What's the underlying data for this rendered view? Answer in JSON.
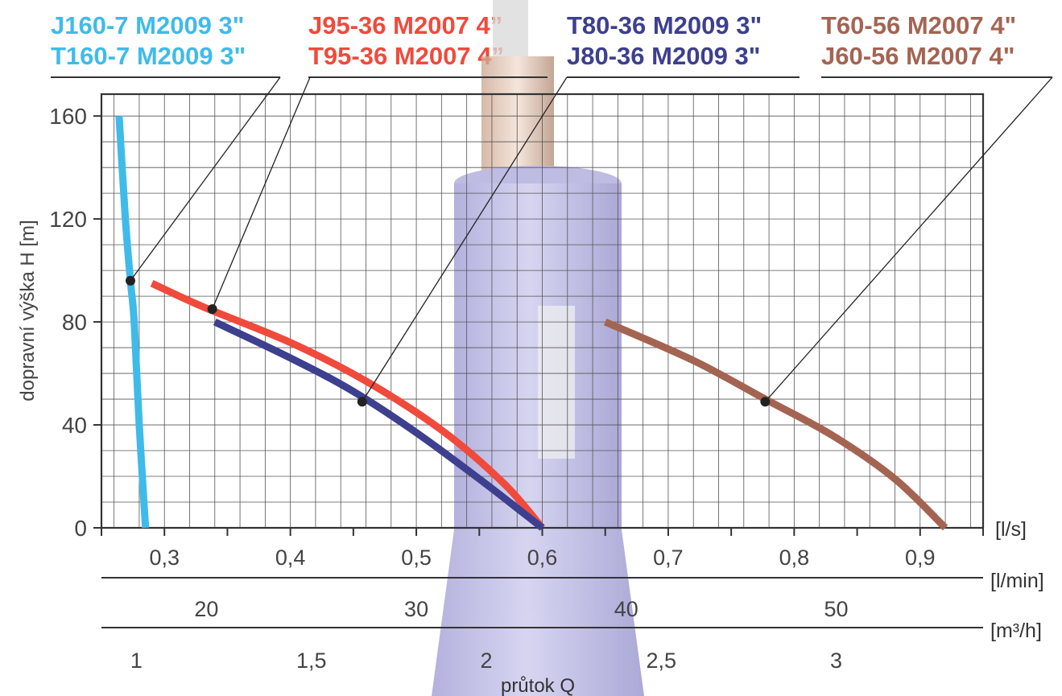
{
  "chart_data": {
    "type": "line",
    "ylabel": "dopravní výška H [m]",
    "xlabel": "průtok Q",
    "ylim": [
      0,
      160
    ],
    "yticks": [
      0,
      40,
      80,
      120,
      160
    ],
    "grid": true,
    "x_axis_primary": {
      "unit": "[l/s]",
      "range": [
        0.25,
        0.95
      ],
      "tick_labels": [
        "0,3",
        "0,4",
        "0,5",
        "0,6",
        "0,7",
        "0,8",
        "0,9"
      ],
      "ticks": [
        0.3,
        0.4,
        0.5,
        0.6,
        0.7,
        0.8,
        0.9
      ]
    },
    "x_axis_lmin": {
      "unit": "[l/min]",
      "tick_labels": [
        "20",
        "30",
        "40",
        "50"
      ],
      "ticks": [
        20,
        30,
        40,
        50
      ]
    },
    "x_axis_m3h": {
      "unit": "[m³/h]",
      "tick_labels": [
        "1",
        "1,5",
        "2",
        "2,5",
        "3"
      ],
      "ticks": [
        1,
        1.5,
        2,
        2.5,
        3
      ]
    },
    "series": [
      {
        "name": "J160-7 M2009 3\" / T160-7 M2009 3\"",
        "color": "#3fbbea",
        "points": [
          [
            0.264,
            160
          ],
          [
            0.269,
            120
          ],
          [
            0.273,
            96
          ],
          [
            0.276,
            80
          ],
          [
            0.28,
            40
          ],
          [
            0.285,
            0
          ]
        ],
        "marker": [
          0.273,
          96
        ]
      },
      {
        "name": "J95-36 M2007 4\" / T95-36 M2007 4\"",
        "color": "#f04a3c",
        "points": [
          [
            0.29,
            95
          ],
          [
            0.33,
            86
          ],
          [
            0.4,
            72
          ],
          [
            0.46,
            57
          ],
          [
            0.52,
            38
          ],
          [
            0.57,
            17
          ],
          [
            0.6,
            0
          ]
        ],
        "marker": [
          0.338,
          85
        ]
      },
      {
        "name": "T80-36 M2009 3\" / J80-36 M2009 3\"",
        "color": "#3d3f8f",
        "points": [
          [
            0.34,
            80
          ],
          [
            0.4,
            66
          ],
          [
            0.45,
            53
          ],
          [
            0.5,
            37
          ],
          [
            0.55,
            19
          ],
          [
            0.6,
            0
          ]
        ],
        "marker": [
          0.457,
          49
        ]
      },
      {
        "name": "T60-56 M2007 4\" / J60-56 M2007 4\"",
        "color": "#a46452",
        "points": [
          [
            0.65,
            80
          ],
          [
            0.72,
            65
          ],
          [
            0.777,
            50
          ],
          [
            0.83,
            36
          ],
          [
            0.88,
            19
          ],
          [
            0.92,
            0
          ]
        ],
        "marker": [
          0.777,
          49
        ]
      }
    ]
  },
  "legend": [
    {
      "line1": "J160-7 M2009 3\"",
      "line2": "T160-7 M2009 3\"",
      "color": "#3fbbea"
    },
    {
      "line1": "J95-36 M2007 4”",
      "line2": "T95-36 M2007 4”",
      "color": "#f04a3c"
    },
    {
      "line1": "T80-36 M2009 3\"",
      "line2": "J80-36 M2009 3\"",
      "color": "#3d3f8f"
    },
    {
      "line1": "T60-56 M2007 4\"",
      "line2": "J60-56 M2007 4\"",
      "color": "#a46452"
    }
  ]
}
